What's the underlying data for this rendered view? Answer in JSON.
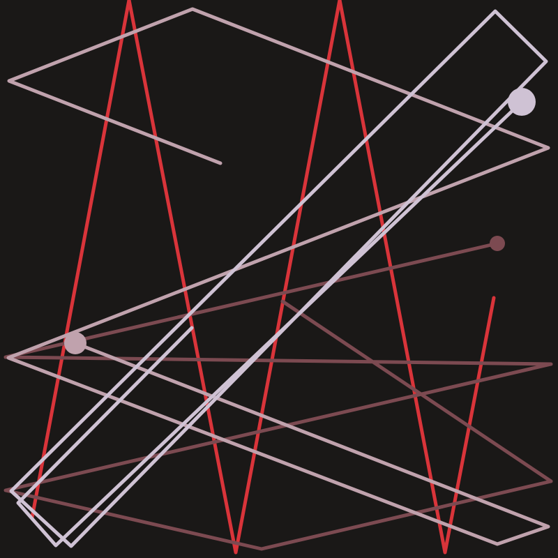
{
  "artwork": {
    "description_tag": "abstract-line-composition",
    "background_color": "#1a1817",
    "palette": {
      "red": "#d9343a",
      "pink": "#c0a2ad",
      "maroon": "#7c4a51",
      "lavender": "#cfc2d4"
    },
    "stroke_count": 6,
    "dot_count": 3
  }
}
